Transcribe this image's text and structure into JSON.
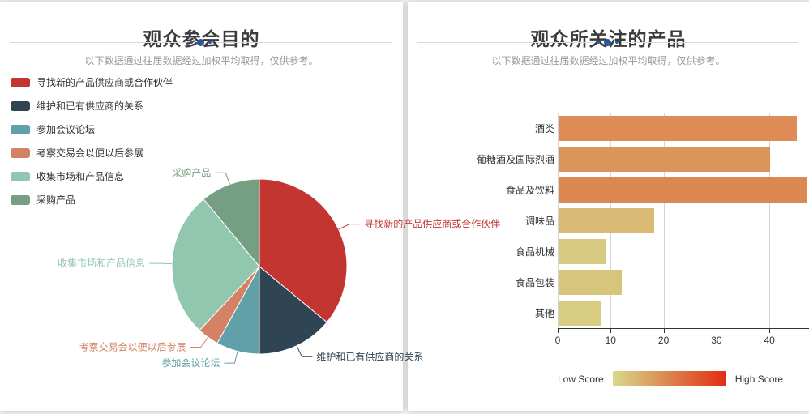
{
  "left_panel": {
    "title": "观众参会目的",
    "subtitle": "以下数据通过往届数据经过加权平均取得，仅供参考。"
  },
  "right_panel": {
    "title": "观众所关注的产品",
    "subtitle": "以下数据通过往届数据经过加权平均取得，仅供参考。",
    "visual_map": {
      "low_label": "Low Score",
      "high_label": "High Score",
      "low_color": "#d7da8b",
      "high_color": "#e22c11"
    }
  },
  "chart_data": [
    {
      "type": "pie",
      "title": "观众参会目的",
      "note": "no numeric labels shown; percentages estimated from arc angles",
      "slices": [
        {
          "label": "寻找新的产品供应商或合作伙伴",
          "value_pct": 36,
          "color": "#c23531"
        },
        {
          "label": "维护和已有供应商的关系",
          "value_pct": 14,
          "color": "#2f4554"
        },
        {
          "label": "参加会议论坛",
          "value_pct": 8,
          "color": "#61a0a8"
        },
        {
          "label": "考察交易会以便以后参展",
          "value_pct": 4,
          "color": "#d48265"
        },
        {
          "label": "收集市场和产品信息",
          "value_pct": 27,
          "color": "#91c7ae"
        },
        {
          "label": "采购产品",
          "value_pct": 11,
          "color": "#749f83"
        }
      ],
      "legend_position": "top-left",
      "start_angle_deg_from_top": 0,
      "direction": "clockwise"
    },
    {
      "type": "bar",
      "title": "观众所关注的产品",
      "orientation": "horizontal",
      "categories": [
        "酒类",
        "葡糖酒及国际烈酒",
        "食品及饮料",
        "调味品",
        "食品机械",
        "食品包装",
        "其他"
      ],
      "values": [
        45,
        40,
        47,
        18,
        9,
        12,
        8
      ],
      "x_ticks": [
        0,
        10,
        20,
        30,
        40
      ],
      "xlim": [
        0,
        47.5
      ],
      "grid": true,
      "colorscale": {
        "low": "#d7da8b",
        "high": "#e22c11",
        "domain": [
          0,
          100
        ]
      }
    }
  ]
}
